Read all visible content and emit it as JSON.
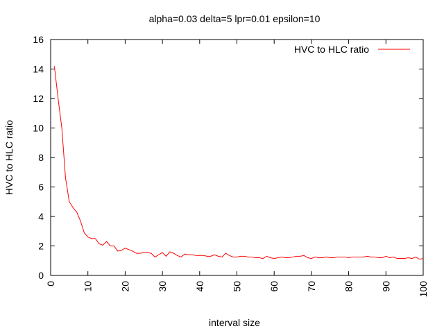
{
  "chart_data": {
    "type": "line",
    "title": "alpha=0.03 delta=5 lpr=0.01 epsilon=10",
    "xlabel": "interval size",
    "ylabel": "HVC to HLC ratio",
    "xlim": [
      0,
      100
    ],
    "ylim": [
      0,
      16
    ],
    "xticks": [
      0,
      10,
      20,
      30,
      40,
      50,
      60,
      70,
      80,
      90,
      100
    ],
    "yticks": [
      0,
      2,
      4,
      6,
      8,
      10,
      12,
      14,
      16
    ],
    "grid": false,
    "legend_position": "top-right",
    "series": [
      {
        "name": "HVC to HLC ratio",
        "color": "#ff0000",
        "x": [
          1,
          2,
          3,
          4,
          5,
          6,
          7,
          8,
          9,
          10,
          11,
          12,
          13,
          14,
          15,
          16,
          17,
          18,
          19,
          20,
          21,
          22,
          23,
          24,
          25,
          26,
          27,
          28,
          29,
          30,
          31,
          32,
          33,
          34,
          35,
          36,
          37,
          38,
          39,
          40,
          41,
          42,
          43,
          44,
          45,
          46,
          47,
          48,
          49,
          50,
          51,
          52,
          53,
          54,
          55,
          56,
          57,
          58,
          59,
          60,
          61,
          62,
          63,
          64,
          65,
          66,
          67,
          68,
          69,
          70,
          71,
          72,
          73,
          74,
          75,
          76,
          77,
          78,
          79,
          80,
          81,
          82,
          83,
          84,
          85,
          86,
          87,
          88,
          89,
          90,
          91,
          92,
          93,
          94,
          95,
          96,
          97,
          98,
          99,
          100
        ],
        "y": [
          14.2,
          12.0,
          10.0,
          6.6,
          5.0,
          4.6,
          4.3,
          3.7,
          2.9,
          2.6,
          2.5,
          2.5,
          2.15,
          2.05,
          2.3,
          2.0,
          2.0,
          1.65,
          1.7,
          1.85,
          1.75,
          1.65,
          1.5,
          1.5,
          1.55,
          1.55,
          1.5,
          1.25,
          1.4,
          1.55,
          1.3,
          1.6,
          1.5,
          1.35,
          1.25,
          1.45,
          1.4,
          1.4,
          1.35,
          1.35,
          1.35,
          1.3,
          1.3,
          1.4,
          1.3,
          1.25,
          1.5,
          1.35,
          1.25,
          1.25,
          1.3,
          1.3,
          1.25,
          1.25,
          1.2,
          1.2,
          1.15,
          1.3,
          1.2,
          1.15,
          1.2,
          1.25,
          1.2,
          1.2,
          1.25,
          1.3,
          1.3,
          1.35,
          1.2,
          1.15,
          1.25,
          1.2,
          1.2,
          1.25,
          1.2,
          1.2,
          1.25,
          1.25,
          1.25,
          1.2,
          1.25,
          1.25,
          1.25,
          1.25,
          1.3,
          1.25,
          1.25,
          1.2,
          1.2,
          1.3,
          1.2,
          1.25,
          1.15,
          1.15,
          1.15,
          1.2,
          1.15,
          1.25,
          1.1,
          1.15
        ]
      }
    ]
  }
}
